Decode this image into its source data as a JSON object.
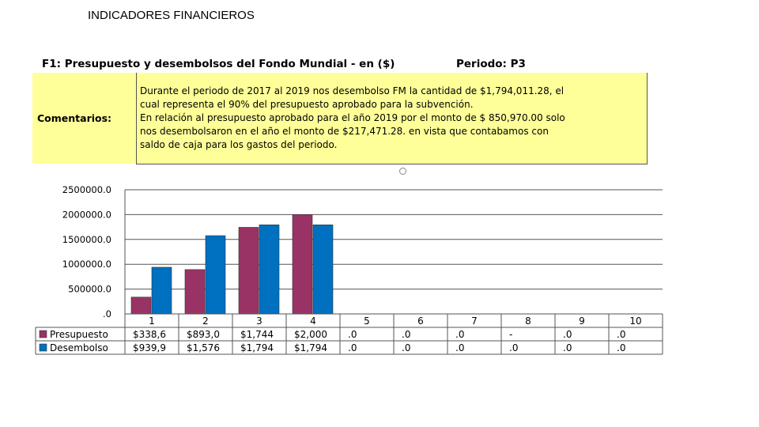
{
  "slide_title": "INDICADORES FINANCIEROS",
  "panel": {
    "header": "F1: Presupuesto y desembolsos del Fondo Mundial - en ($)",
    "period": "Periodo: P3"
  },
  "comments": {
    "label": "Comentarios:",
    "lines": [
      "Durante el periodo de 2017 al 2019 nos desembolso FM la cantidad de $1,794,011.28, el",
      "cual  representa el 90% del presupuesto aprobado para la subvención.",
      "En relación al presupuesto aprobado para el año 2019  por el monto de $ 850,970.00 solo",
      "nos desembolsaron en el año el monto de $217,471.28. en vista que contabamos con",
      "saldo de caja para los gastos del periodo."
    ]
  },
  "chart_data": {
    "type": "bar",
    "title": "",
    "xlabel": "",
    "ylabel": "",
    "ylim": [
      0,
      2500000
    ],
    "y_ticks": [
      0,
      500000,
      1000000,
      1500000,
      2000000,
      2500000
    ],
    "y_tick_labels": [
      ".0",
      "500000.0",
      "1000000.0",
      "1500000.0",
      "2000000.0",
      "2500000.0"
    ],
    "categories": [
      "1",
      "2",
      "3",
      "4",
      "5",
      "6",
      "7",
      "8",
      "9",
      "10"
    ],
    "grid": true,
    "legend": "table-left",
    "series": [
      {
        "name": "Presupuesto",
        "color": "#993366",
        "values": [
          338600,
          893000,
          1744000,
          2000000,
          0,
          0,
          0,
          0,
          0,
          0
        ],
        "labels": [
          "$338,6",
          "$893,0",
          "$1,744",
          "$2,000",
          ".0",
          ".0",
          ".0",
          "-",
          ".0",
          ".0"
        ]
      },
      {
        "name": "Desembolso",
        "color": "#0070c0",
        "values": [
          939900,
          1576000,
          1794000,
          1794000,
          0,
          0,
          0,
          0,
          0,
          0
        ],
        "labels": [
          "$939,9",
          "$1,576",
          "$1,794",
          "$1,794",
          ".0",
          ".0",
          ".0",
          ".0",
          ".0",
          ".0"
        ]
      }
    ]
  }
}
